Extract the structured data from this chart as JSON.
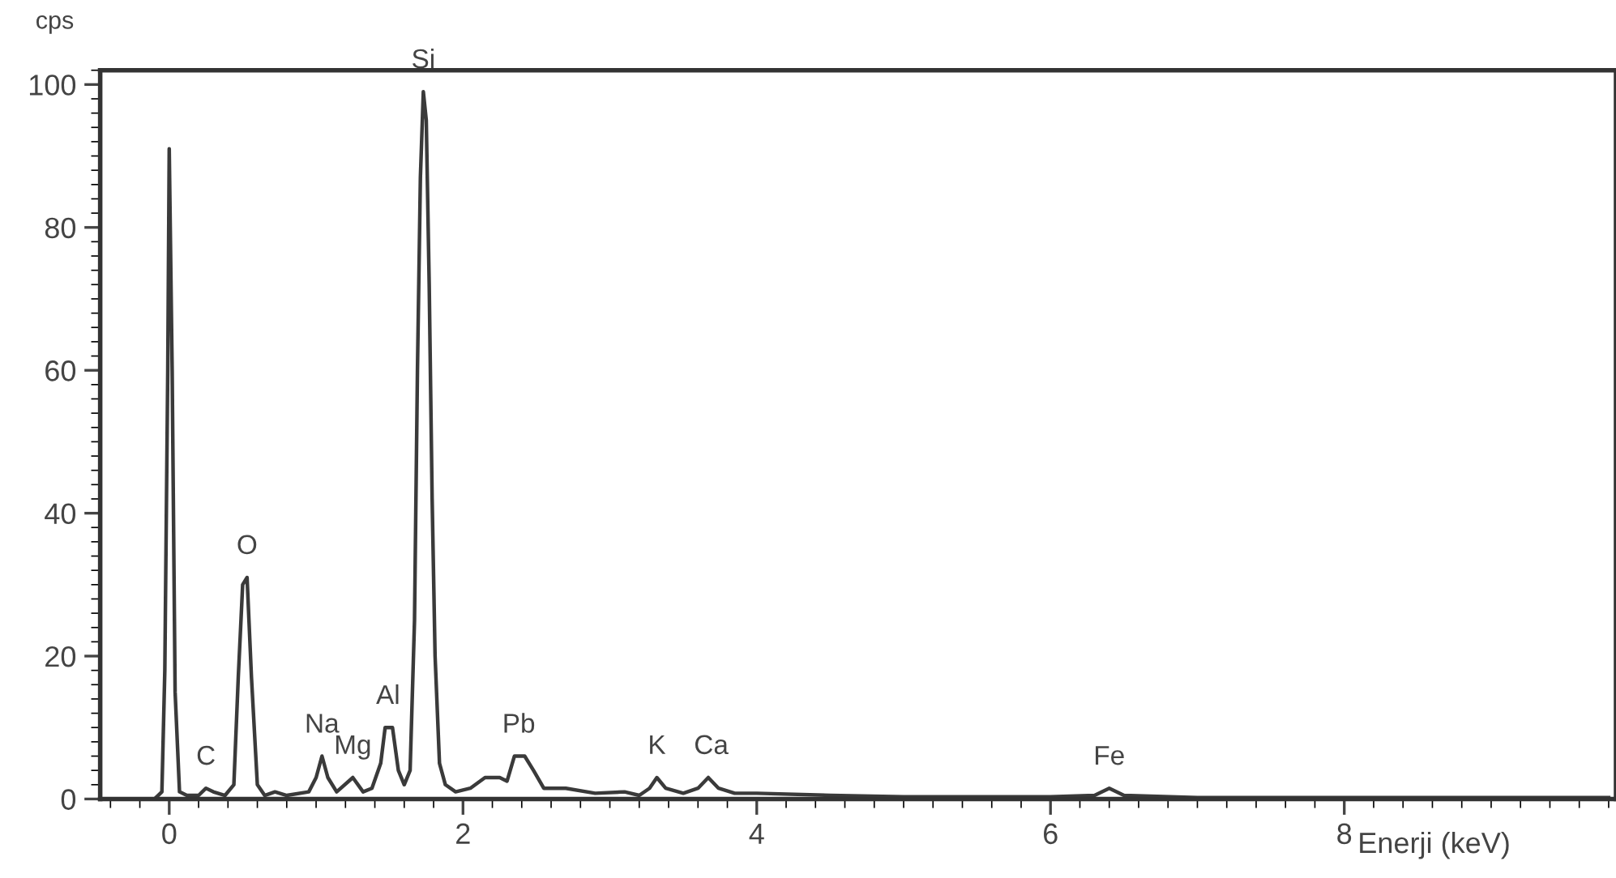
{
  "chart_data": {
    "type": "line",
    "xlabel": "Enerji (keV)",
    "ylabel": "cps",
    "xlim": [
      -0.47,
      9.85
    ],
    "ylim": [
      0,
      102
    ],
    "xticks": [
      0,
      2,
      4,
      6,
      8
    ],
    "yticks": [
      0,
      20,
      40,
      60,
      80,
      100
    ],
    "grid": false,
    "legend": false,
    "marker": "none",
    "line_style": "solid",
    "series": [
      {
        "color": "#3a3a3a",
        "x": [
          -0.45,
          -0.1,
          -0.05,
          -0.03,
          -0.01,
          0,
          0.02,
          0.04,
          0.07,
          0.12,
          0.2,
          0.25,
          0.3,
          0.38,
          0.44,
          0.47,
          0.5,
          0.53,
          0.56,
          0.6,
          0.65,
          0.72,
          0.8,
          0.95,
          1.0,
          1.04,
          1.08,
          1.14,
          1.25,
          1.32,
          1.38,
          1.44,
          1.47,
          1.52,
          1.56,
          1.6,
          1.64,
          1.67,
          1.69,
          1.71,
          1.73,
          1.75,
          1.77,
          1.79,
          1.81,
          1.84,
          1.88,
          1.95,
          2.05,
          2.15,
          2.25,
          2.3,
          2.35,
          2.42,
          2.48,
          2.55,
          2.7,
          2.9,
          3.1,
          3.2,
          3.27,
          3.32,
          3.38,
          3.5,
          3.6,
          3.67,
          3.74,
          3.85,
          4.0,
          4.5,
          5.0,
          6.0,
          6.3,
          6.4,
          6.5,
          7,
          8,
          9,
          9.8
        ],
        "values": [
          0,
          0,
          1,
          18,
          60,
          91,
          60,
          15,
          1,
          0.5,
          0.5,
          1.5,
          1,
          0.5,
          2,
          17,
          30,
          31,
          17,
          2,
          0.5,
          1,
          0.5,
          1,
          3,
          6,
          3,
          1,
          3,
          1,
          1.5,
          5,
          10,
          10,
          4,
          2,
          4,
          25,
          60,
          87,
          99,
          95,
          72,
          42,
          20,
          5,
          2,
          1,
          1.5,
          3,
          3,
          2.5,
          6,
          6,
          4,
          1.5,
          1.5,
          0.8,
          1,
          0.5,
          1.5,
          3,
          1.5,
          0.8,
          1.5,
          3,
          1.5,
          0.8,
          0.8,
          0.5,
          0.3,
          0.3,
          0.5,
          1.5,
          0.5,
          0.2,
          0.2,
          0.2,
          0.2
        ]
      }
    ],
    "annotations": [
      {
        "text": "C",
        "x": 0.25,
        "y": 1.5
      },
      {
        "text": "O",
        "x": 0.53,
        "y": 31
      },
      {
        "text": "Na",
        "x": 1.04,
        "y": 6
      },
      {
        "text": "Mg",
        "x": 1.25,
        "y": 3
      },
      {
        "text": "Al",
        "x": 1.49,
        "y": 10
      },
      {
        "text": "Si",
        "x": 1.73,
        "y": 99
      },
      {
        "text": "Pb",
        "x": 2.38,
        "y": 6
      },
      {
        "text": "K",
        "x": 3.32,
        "y": 3
      },
      {
        "text": "Ca",
        "x": 3.69,
        "y": 3
      },
      {
        "text": "Fe",
        "x": 6.4,
        "y": 1.5
      }
    ]
  }
}
